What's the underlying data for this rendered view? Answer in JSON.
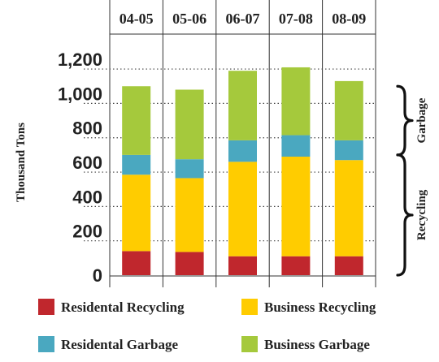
{
  "chart_data": {
    "type": "bar",
    "stacked": true,
    "categories": [
      "04-05",
      "05-06",
      "06-07",
      "07-08",
      "08-09"
    ],
    "series": [
      {
        "name": "Residental Recycling",
        "color": "#c0272d",
        "values": [
          140,
          135,
          110,
          110,
          110
        ]
      },
      {
        "name": "Business Recycling",
        "color": "#ffcc00",
        "values": [
          445,
          430,
          550,
          580,
          560
        ]
      },
      {
        "name": "Residental Garbage",
        "color": "#4aa8c0",
        "values": [
          115,
          110,
          125,
          125,
          115
        ]
      },
      {
        "name": "Business Garbage",
        "color": "#a5c93c",
        "values": [
          400,
          405,
          405,
          395,
          345
        ]
      }
    ],
    "ylabel": "Thousand Tons",
    "yticks": [
      0,
      200,
      400,
      600,
      800,
      "1,000",
      "1,200"
    ],
    "ylim": [
      0,
      1300
    ],
    "grid": "horizontal dotted",
    "legend_position": "bottom",
    "brackets": [
      {
        "label": "Garbage",
        "from": 700,
        "to": 1100
      },
      {
        "label": "Recycling",
        "from": 0,
        "to": 700
      }
    ]
  }
}
